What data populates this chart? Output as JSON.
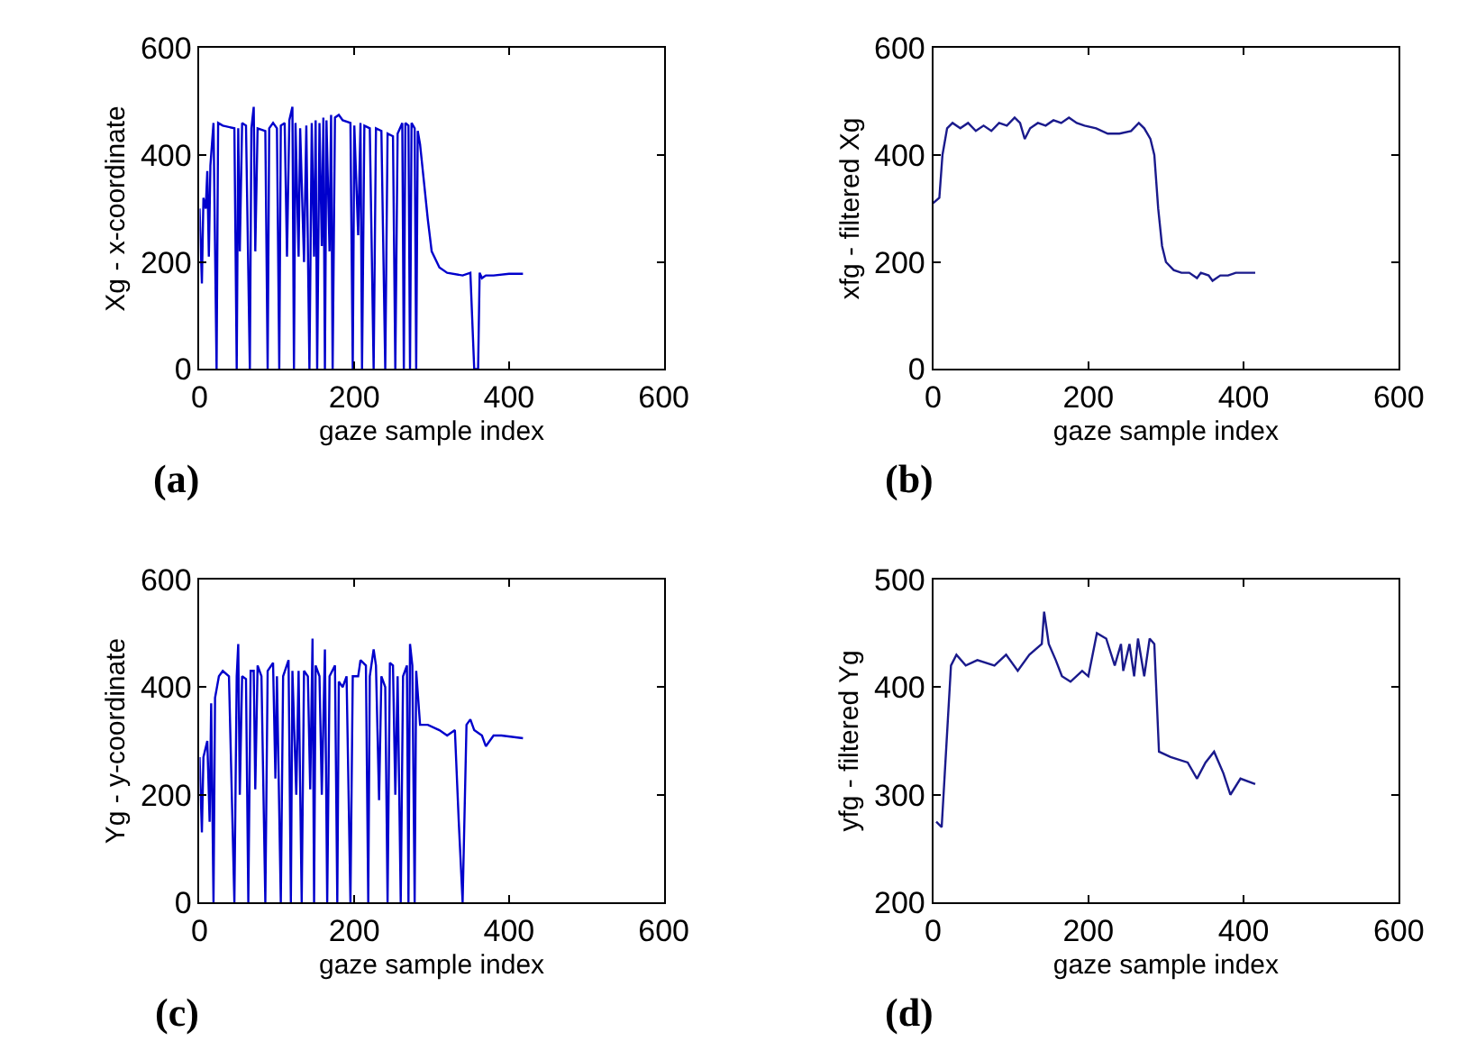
{
  "chart_data": [
    {
      "type": "line",
      "xlabel": "gaze sample index",
      "ylabel": "Xg - x-coordinate",
      "annotations": [
        "(a)"
      ],
      "xlim": [
        0,
        600
      ],
      "xticks": [
        0,
        200,
        400,
        600
      ],
      "ylim": [
        0,
        600
      ],
      "yticks": [
        0,
        200,
        400,
        600
      ],
      "x": [
        0,
        3,
        5,
        8,
        10,
        12,
        14,
        18,
        22,
        24,
        30,
        45,
        48,
        50,
        52,
        55,
        60,
        65,
        67,
        70,
        72,
        75,
        85,
        88,
        90,
        95,
        100,
        103,
        105,
        110,
        113,
        116,
        120,
        122,
        124,
        128,
        130,
        135,
        138,
        142,
        145,
        148,
        150,
        152,
        155,
        158,
        160,
        162,
        164,
        168,
        170,
        172,
        175,
        180,
        185,
        195,
        198,
        200,
        205,
        208,
        210,
        213,
        220,
        225,
        228,
        235,
        240,
        243,
        250,
        253,
        256,
        262,
        264,
        266,
        270,
        272,
        274,
        278,
        280,
        282,
        285,
        290,
        295,
        300,
        310,
        320,
        340,
        350,
        355,
        360,
        362,
        365,
        370,
        380,
        400,
        418
      ],
      "series": [
        {
          "color": "#0000cc",
          "values": [
            300,
            160,
            320,
            300,
            370,
            210,
            380,
            460,
            0,
            460,
            455,
            450,
            0,
            450,
            220,
            460,
            455,
            0,
            450,
            490,
            220,
            450,
            445,
            0,
            450,
            460,
            450,
            0,
            455,
            460,
            210,
            465,
            490,
            0,
            460,
            210,
            450,
            200,
            455,
            0,
            460,
            210,
            465,
            0,
            460,
            230,
            470,
            0,
            465,
            220,
            475,
            0,
            470,
            475,
            465,
            460,
            0,
            455,
            250,
            460,
            0,
            455,
            450,
            0,
            450,
            445,
            0,
            440,
            435,
            0,
            440,
            460,
            0,
            460,
            455,
            0,
            460,
            450,
            0,
            445,
            420,
            350,
            280,
            220,
            190,
            180,
            175,
            180,
            0,
            0,
            180,
            170,
            175,
            175,
            178,
            178
          ]
        }
      ]
    },
    {
      "type": "line",
      "xlabel": "gaze sample index",
      "ylabel": "xfg - filtered Xg",
      "annotations": [
        "(b)"
      ],
      "xlim": [
        0,
        600
      ],
      "xticks": [
        0,
        200,
        400,
        600
      ],
      "ylim": [
        0,
        600
      ],
      "yticks": [
        0,
        200,
        400,
        600
      ],
      "x": [
        0,
        8,
        12,
        18,
        25,
        35,
        45,
        55,
        65,
        75,
        85,
        95,
        105,
        112,
        118,
        125,
        135,
        145,
        155,
        165,
        175,
        185,
        195,
        210,
        225,
        240,
        255,
        265,
        272,
        280,
        285,
        290,
        295,
        300,
        310,
        320,
        330,
        340,
        345,
        355,
        360,
        370,
        380,
        390,
        400,
        415
      ],
      "series": [
        {
          "color": "#1a1a8c",
          "values": [
            310,
            320,
            400,
            450,
            460,
            450,
            460,
            445,
            455,
            445,
            460,
            455,
            470,
            460,
            430,
            450,
            460,
            455,
            465,
            460,
            470,
            460,
            455,
            450,
            440,
            440,
            445,
            460,
            450,
            430,
            400,
            300,
            230,
            200,
            185,
            180,
            180,
            170,
            180,
            175,
            165,
            175,
            175,
            180,
            180,
            180
          ]
        }
      ]
    },
    {
      "type": "line",
      "xlabel": "gaze sample index",
      "ylabel": "Yg - y-coordinate",
      "annotations": [
        "(c)"
      ],
      "xlim": [
        0,
        600
      ],
      "xticks": [
        0,
        200,
        400,
        600
      ],
      "ylim": [
        0,
        600
      ],
      "yticks": [
        0,
        200,
        400,
        600
      ],
      "x": [
        0,
        3,
        5,
        10,
        13,
        15,
        18,
        20,
        25,
        30,
        38,
        45,
        48,
        50,
        52,
        55,
        60,
        63,
        66,
        70,
        72,
        75,
        80,
        85,
        88,
        95,
        98,
        100,
        105,
        108,
        115,
        118,
        120,
        125,
        128,
        132,
        135,
        140,
        143,
        146,
        148,
        150,
        155,
        158,
        162,
        165,
        168,
        175,
        178,
        180,
        185,
        190,
        195,
        198,
        205,
        208,
        215,
        218,
        220,
        225,
        228,
        232,
        235,
        240,
        243,
        246,
        250,
        253,
        256,
        260,
        263,
        268,
        270,
        272,
        275,
        278,
        280,
        285,
        295,
        310,
        320,
        330,
        335,
        340,
        345,
        350,
        355,
        365,
        370,
        380,
        390,
        418
      ],
      "series": [
        {
          "color": "#0000cc",
          "values": [
            270,
            130,
            270,
            300,
            150,
            370,
            0,
            380,
            420,
            430,
            420,
            0,
            420,
            480,
            200,
            420,
            415,
            0,
            430,
            430,
            210,
            440,
            420,
            0,
            430,
            445,
            230,
            420,
            0,
            420,
            450,
            0,
            430,
            200,
            430,
            0,
            430,
            420,
            210,
            490,
            0,
            440,
            420,
            200,
            470,
            0,
            420,
            440,
            0,
            410,
            400,
            420,
            0,
            420,
            420,
            450,
            440,
            0,
            420,
            470,
            440,
            190,
            420,
            400,
            0,
            445,
            440,
            200,
            420,
            0,
            420,
            440,
            0,
            480,
            440,
            0,
            430,
            330,
            330,
            320,
            310,
            320,
            150,
            0,
            330,
            340,
            320,
            310,
            290,
            310,
            310,
            305
          ]
        }
      ]
    },
    {
      "type": "line",
      "xlabel": "gaze sample index",
      "ylabel": "yfg - filtered Yg",
      "annotations": [
        "(d)"
      ],
      "xlim": [
        0,
        600
      ],
      "xticks": [
        0,
        200,
        400,
        600
      ],
      "ylim": [
        200,
        500
      ],
      "yticks": [
        200,
        300,
        400,
        500
      ],
      "x": [
        4,
        11,
        15,
        19,
        23,
        30,
        42,
        57,
        79,
        94,
        109,
        124,
        140,
        143,
        149,
        158,
        166,
        177,
        192,
        200,
        211,
        223,
        234,
        242,
        245,
        253,
        259,
        264,
        272,
        279,
        285,
        291,
        306,
        328,
        340,
        351,
        362,
        374,
        383,
        396,
        415
      ],
      "series": [
        {
          "color": "#1a1a8c",
          "values": [
            275,
            270,
            320,
            370,
            420,
            430,
            420,
            425,
            420,
            430,
            415,
            430,
            440,
            470,
            440,
            425,
            410,
            405,
            415,
            410,
            450,
            445,
            420,
            440,
            415,
            440,
            410,
            445,
            410,
            445,
            440,
            340,
            335,
            330,
            315,
            330,
            340,
            320,
            300,
            315,
            310
          ]
        }
      ]
    }
  ]
}
